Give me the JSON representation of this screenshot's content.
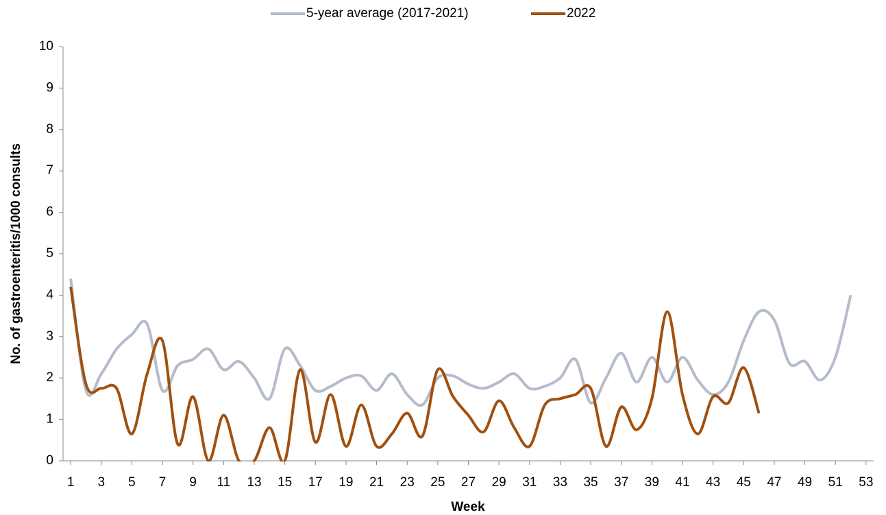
{
  "chart_data": {
    "type": "line",
    "x_label": "Week",
    "y_label": "No. of gastroenteritis/1000 consults",
    "x": [
      1,
      2,
      3,
      4,
      5,
      6,
      7,
      8,
      9,
      10,
      11,
      12,
      13,
      14,
      15,
      16,
      17,
      18,
      19,
      20,
      21,
      22,
      23,
      24,
      25,
      26,
      27,
      28,
      29,
      30,
      31,
      32,
      33,
      34,
      35,
      36,
      37,
      38,
      39,
      40,
      41,
      42,
      43,
      44,
      45,
      46,
      47,
      48,
      49,
      50,
      51,
      52,
      53
    ],
    "xlim": [
      0.5,
      53.5
    ],
    "xticks": [
      1,
      3,
      5,
      7,
      9,
      11,
      13,
      15,
      17,
      19,
      21,
      23,
      25,
      27,
      29,
      31,
      33,
      35,
      37,
      39,
      41,
      43,
      45,
      47,
      49,
      51,
      53
    ],
    "ylim": [
      0,
      10
    ],
    "yticks": [
      0,
      1,
      2,
      3,
      4,
      5,
      6,
      7,
      8,
      9,
      10
    ],
    "legend": "top",
    "smooth": true,
    "series": [
      {
        "name": "5-year average (2017-2021)",
        "color": "#b4bccc",
        "values": [
          4.4,
          1.7,
          2.1,
          2.7,
          3.05,
          3.3,
          1.7,
          2.3,
          2.45,
          2.7,
          2.2,
          2.4,
          2.0,
          1.5,
          2.7,
          2.3,
          1.7,
          1.8,
          2.0,
          2.05,
          1.7,
          2.1,
          1.6,
          1.35,
          2.0,
          2.05,
          1.85,
          1.75,
          1.9,
          2.1,
          1.75,
          1.8,
          2.0,
          2.45,
          1.4,
          2.0,
          2.6,
          1.9,
          2.5,
          1.9,
          2.5,
          1.95,
          1.6,
          1.9,
          2.9,
          3.6,
          3.4,
          2.35,
          2.4,
          1.95,
          2.5,
          4.0,
          null
        ]
      },
      {
        "name": "2022",
        "color": "#a0500f",
        "values": [
          4.2,
          1.85,
          1.75,
          1.75,
          0.65,
          2.1,
          2.9,
          0.4,
          1.55,
          0.0,
          1.1,
          0.0,
          0.0,
          0.8,
          0.0,
          2.2,
          0.45,
          1.6,
          0.35,
          1.35,
          0.35,
          0.65,
          1.15,
          0.6,
          2.2,
          1.55,
          1.1,
          0.7,
          1.45,
          0.8,
          0.35,
          1.35,
          1.5,
          1.6,
          1.75,
          0.35,
          1.3,
          0.75,
          1.5,
          3.6,
          1.6,
          0.65,
          1.55,
          1.4,
          2.25,
          1.15,
          null,
          null,
          null,
          null,
          null,
          null,
          null
        ]
      }
    ]
  }
}
